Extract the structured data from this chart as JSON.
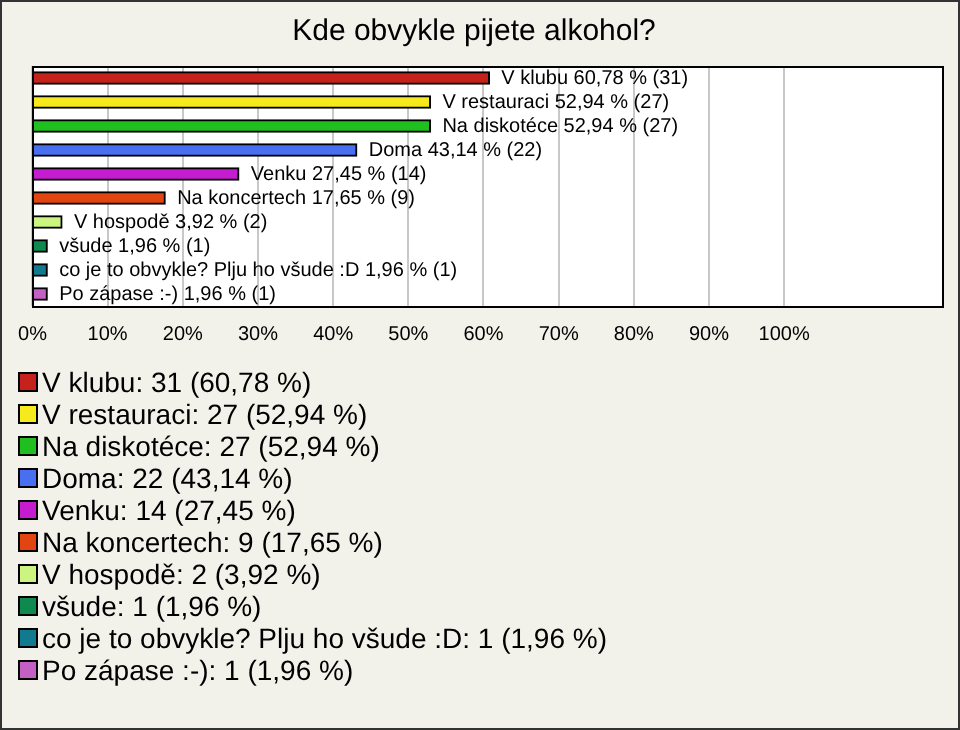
{
  "chart_data": {
    "type": "bar",
    "orientation": "horizontal",
    "title": "Kde obvykle pijete alkohol?",
    "categories": [
      null,
      null,
      null,
      null,
      null,
      null,
      null,
      null,
      null,
      null
    ],
    "values": [
      60.78,
      52.94,
      52.94,
      43.14,
      27.45,
      17.65,
      3.92,
      1.96,
      1.96,
      1.96
    ],
    "colors": [
      "#c4221a",
      "#f7ea1c",
      "#1fbf1f",
      "#476ff0",
      "#c41ccf",
      "#e24510",
      "#ccf57f",
      "#0f8a4f",
      "#127a8f",
      "#c45fc4"
    ],
    "value_labels": [
      "V klubu 60,78 % (31)",
      "V restauraci 52,94 % (27)",
      "Na diskotéce 52,94 % (27)",
      "Doma 43,14 % (22)",
      "Venku 27,45 % (14)",
      "Na koncertech 17,65 % (9)",
      "V hospodě 3,92 % (2)",
      "všude 1,96 % (1)",
      "co je to obvykle? Plju ho všude :D 1,96 % (1)",
      "Po zápase :-) 1,96 % (1)"
    ],
    "xlim": [
      0,
      121
    ],
    "xticks": [
      {
        "value": 0,
        "label": "0%"
      },
      {
        "value": 10,
        "label": "10%"
      },
      {
        "value": 20,
        "label": "20%"
      },
      {
        "value": 30,
        "label": "30%"
      },
      {
        "value": 40,
        "label": "40%"
      },
      {
        "value": 50,
        "label": "50%"
      },
      {
        "value": 60,
        "label": "60%"
      },
      {
        "value": 70,
        "label": "70%"
      },
      {
        "value": 80,
        "label": "80%"
      },
      {
        "value": 90,
        "label": "90%"
      },
      {
        "value": 100,
        "label": "100%"
      }
    ],
    "grid": "x",
    "tick_labels": "x",
    "annotations": [
      "V klubu: 31 (60,78 %)",
      "V restauraci: 27 (52,94 %)",
      "Na diskotéce: 27 (52,94 %)",
      "Doma: 22 (43,14 %)",
      "Venku: 14 (27,45 %)",
      "Na koncertech: 9 (17,65 %)",
      "V hospodě: 2 (3,92 %)",
      "všude: 1 (1,96 %)",
      "co je to obvykle? Plju ho všude :D: 1 (1,96 %)",
      "Po zápase :-): 1 (1,96 %)"
    ]
  }
}
